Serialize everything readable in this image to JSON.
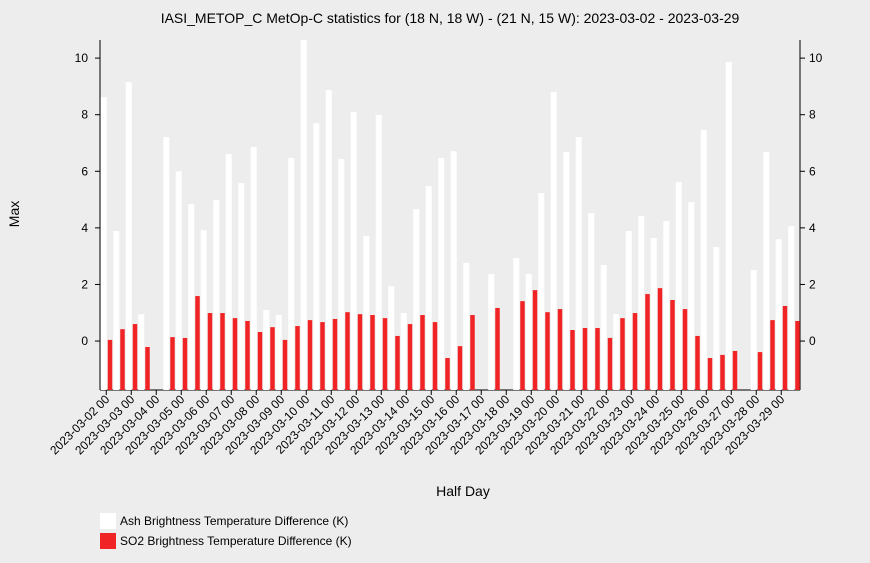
{
  "chart_data": {
    "type": "bar",
    "title": "IASI_METOP_C MetOp-C statistics for (18 N, 18 W) - (21 N, 15 W): 2023-03-02 - 2023-03-29",
    "x_label": "Half Day",
    "y_label": "Max",
    "categories": [
      "2023-03-02 00",
      null,
      "2023-03-03 00",
      null,
      "2023-03-04 00",
      null,
      "2023-03-05 00",
      null,
      "2023-03-06 00",
      null,
      "2023-03-07 00",
      null,
      "2023-03-08 00",
      null,
      "2023-03-09 00",
      null,
      "2023-03-10 00",
      null,
      "2023-03-11 00",
      null,
      "2023-03-12 00",
      null,
      "2023-03-13 00",
      null,
      "2023-03-14 00",
      null,
      "2023-03-15 00",
      null,
      "2023-03-16 00",
      null,
      "2023-03-17 00",
      null,
      "2023-03-18 00",
      null,
      "2023-03-19 00",
      null,
      "2023-03-20 00",
      null,
      "2023-03-21 00",
      null,
      "2023-03-22 00",
      null,
      "2023-03-23 00",
      null,
      "2023-03-24 00",
      null,
      "2023-03-25 00",
      null,
      "2023-03-26 00",
      null,
      "2023-03-27 00",
      null,
      "2023-03-28 00",
      null,
      "2023-03-29 00",
      null
    ],
    "series": [
      {
        "name": "Ash Brightness Temperature Difference (K)",
        "color": "#ffffff",
        "values": [
          8.62,
          3.89,
          9.15,
          0.95,
          null,
          7.21,
          6.0,
          4.84,
          3.92,
          4.98,
          6.61,
          5.58,
          6.86,
          1.1,
          0.92,
          6.47,
          10.64,
          7.7,
          8.87,
          6.43,
          8.09,
          3.71,
          7.99,
          1.94,
          0.99,
          4.66,
          5.48,
          6.47,
          6.71,
          2.76,
          null,
          2.37,
          null,
          2.93,
          2.37,
          5.23,
          8.8,
          6.68,
          7.21,
          4.52,
          2.69,
          0.95,
          3.89,
          4.42,
          3.64,
          4.24,
          5.62,
          4.91,
          7.46,
          3.32,
          9.86,
          null,
          2.51,
          6.68,
          3.6,
          4.06
        ]
      },
      {
        "name": "SO2 Brightness Temperature Difference (K)",
        "color": "#f02424",
        "values": [
          0.04,
          0.42,
          0.6,
          -0.21,
          null,
          0.14,
          0.11,
          1.59,
          0.99,
          0.99,
          0.81,
          0.71,
          0.32,
          0.49,
          0.04,
          0.53,
          0.74,
          0.67,
          0.78,
          1.02,
          0.95,
          0.92,
          0.81,
          0.18,
          0.6,
          0.92,
          0.67,
          -0.6,
          -0.18,
          0.92,
          null,
          1.17,
          null,
          1.41,
          1.8,
          1.02,
          1.13,
          0.39,
          0.46,
          0.46,
          0.11,
          0.81,
          0.99,
          1.66,
          1.87,
          1.45,
          1.13,
          0.18,
          -0.6,
          -0.49,
          -0.35,
          null,
          -0.39,
          0.74,
          1.24,
          0.71
        ]
      }
    ],
    "ylim": [
      -1.73,
      10.64
    ],
    "yticks": [
      0,
      2,
      4,
      6,
      8,
      10
    ]
  }
}
